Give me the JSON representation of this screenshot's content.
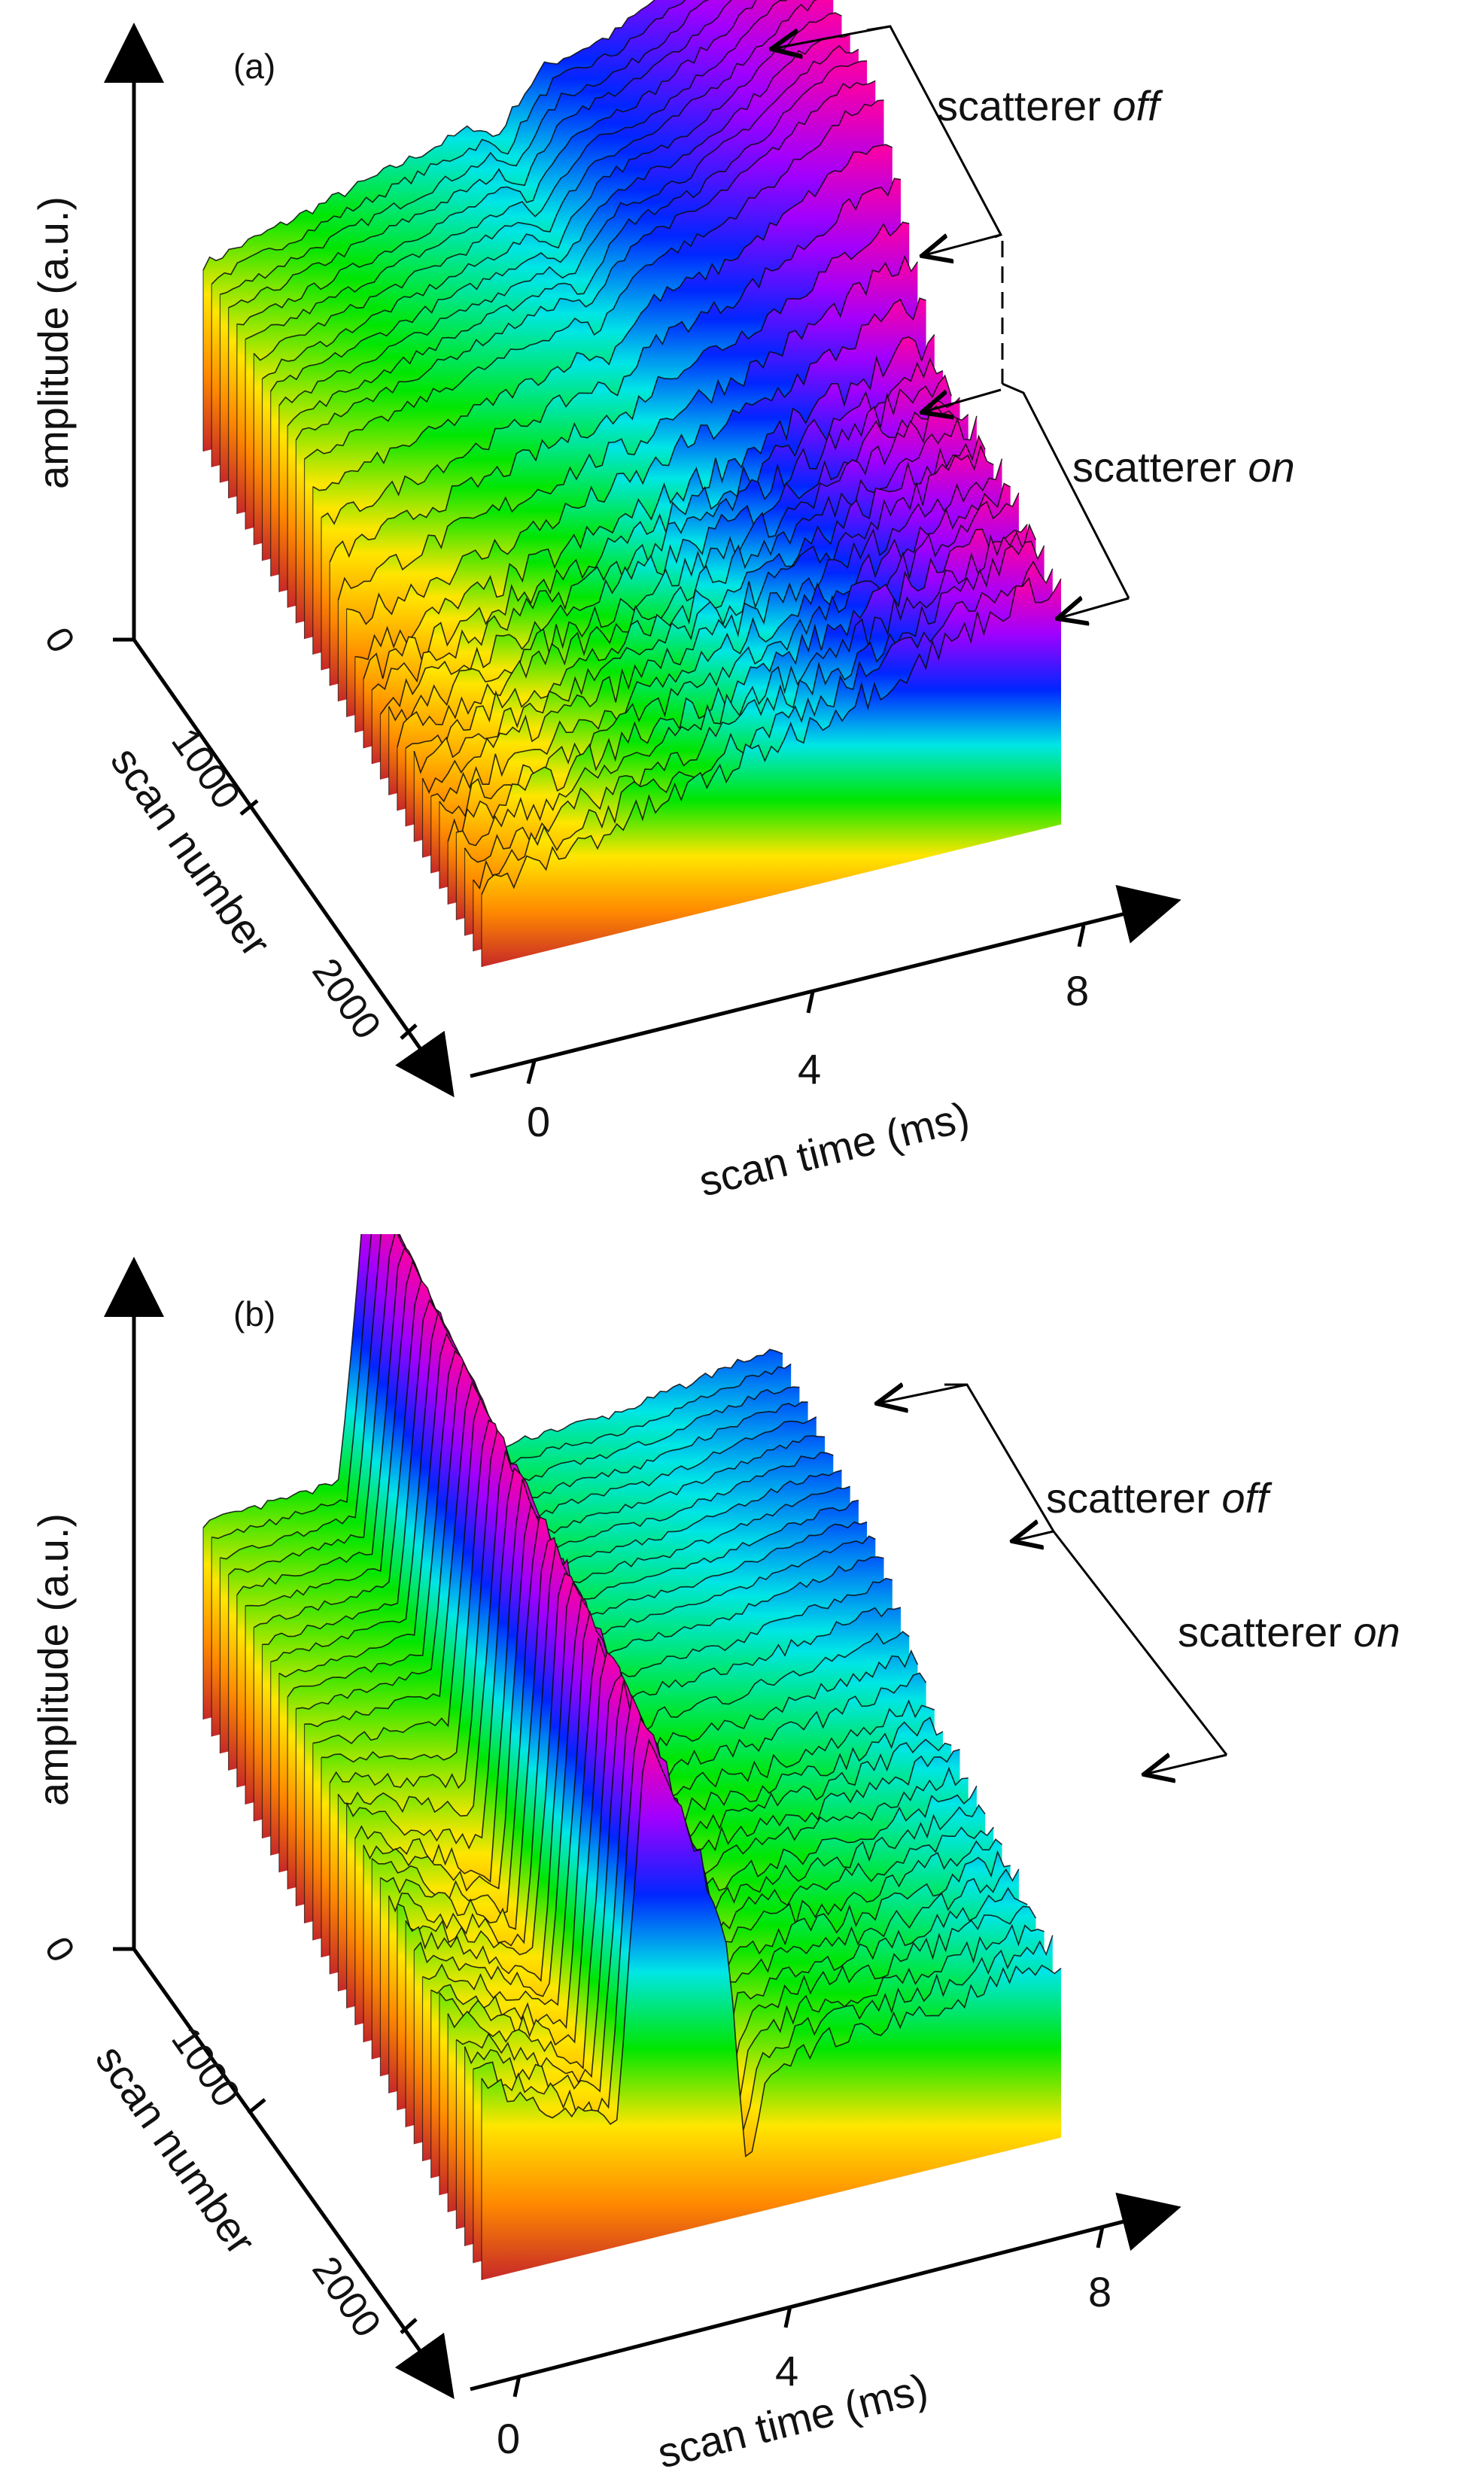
{
  "chart_data": [
    {
      "type": "surface3d",
      "panel_label": "(a)",
      "z_axis_label": "amplitude (a.u.)",
      "z_ticks": [
        "0"
      ],
      "y_axis_label": "scan number",
      "y_ticks": [
        "0",
        "1000",
        "2000"
      ],
      "x_axis_label": "scan time (ms)",
      "x_ticks": [
        "0",
        "4",
        "8"
      ],
      "annotations": {
        "off_prefix": "scatterer ",
        "off_word": "off",
        "on_prefix": "scatterer ",
        "on_word": "on"
      },
      "xlim": [
        0,
        8.5
      ],
      "scan_number_range": [
        0,
        2500
      ],
      "colormap": [
        "#c62828",
        "#ff8a00",
        "#ffe600",
        "#00e600",
        "#00e6e6",
        "#0026ff",
        "#a000ff",
        "#ff00a0"
      ],
      "series": [
        {
          "name": "scatterer off",
          "x": [
            0,
            2,
            4,
            4.3,
            4.6,
            5,
            6,
            7,
            8
          ],
          "z": [
            0.62,
            0.74,
            0.86,
            0.8,
            0.9,
            1.0,
            1.05,
            1.18,
            1.34
          ]
        },
        {
          "name": "scatterer on",
          "x": [
            0,
            2,
            4,
            6,
            8
          ],
          "z": [
            0.25,
            0.36,
            0.48,
            0.62,
            0.8
          ]
        }
      ]
    },
    {
      "type": "surface3d",
      "panel_label": "(b)",
      "z_axis_label": "amplitude (a.u.)",
      "z_ticks": [
        "0"
      ],
      "y_axis_label": "scan number",
      "y_ticks": [
        "0",
        "1000",
        "2000"
      ],
      "x_axis_label": "scan time (ms)",
      "x_ticks": [
        "0",
        "4",
        "8"
      ],
      "annotations": {
        "off_prefix": "scatterer ",
        "off_word": "off",
        "on_prefix": "scatterer ",
        "on_word": "on"
      },
      "xlim": [
        0,
        8.5
      ],
      "scan_number_range": [
        0,
        2500
      ],
      "colormap": [
        "#c62828",
        "#ff8a00",
        "#ffe600",
        "#00e600",
        "#00e6e6",
        "#0026ff",
        "#a000ff",
        "#ff00a0"
      ],
      "series": [
        {
          "name": "scatterer off",
          "x": [
            0,
            2,
            2.4,
            2.8,
            3.2,
            3.6,
            3.9,
            4.2,
            5,
            6,
            7,
            8
          ],
          "z": [
            0.5,
            0.52,
            1.3,
            1.15,
            0.95,
            0.7,
            0.1,
            0.5,
            0.52,
            0.52,
            0.55,
            0.58
          ]
        },
        {
          "name": "scatterer on",
          "x": [
            0,
            2,
            2.4,
            2.8,
            3.2,
            3.6,
            3.9,
            4.2,
            5,
            6,
            7,
            8
          ],
          "z": [
            0.5,
            0.3,
            1.3,
            1.15,
            0.95,
            0.7,
            0.1,
            0.35,
            0.4,
            0.4,
            0.42,
            0.45
          ]
        }
      ]
    }
  ]
}
